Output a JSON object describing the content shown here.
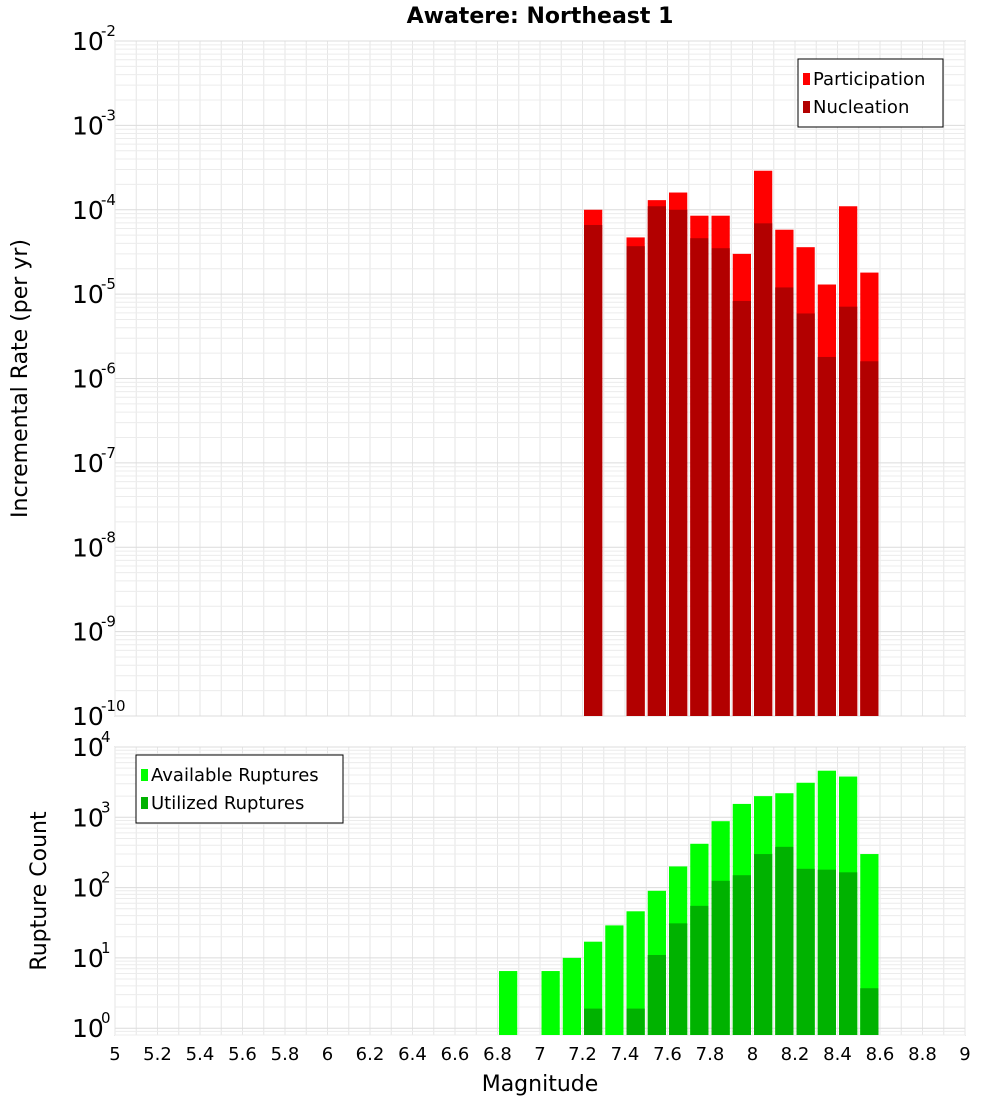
{
  "chart_data": [
    {
      "type": "bar",
      "title": "Awatere: Northeast 1",
      "xlabel": "Magnitude",
      "ylabel": "Incremental Rate (per yr)",
      "yscale": "log",
      "xlim": [
        5,
        9
      ],
      "ylim": [
        1e-10,
        0.01
      ],
      "grid": true,
      "legend_position": "top-right",
      "x": [
        7.25,
        7.45,
        7.55,
        7.65,
        7.75,
        7.85,
        7.95,
        8.05,
        8.15,
        8.25,
        8.35,
        8.45,
        8.55
      ],
      "series": [
        {
          "name": "Participation",
          "color": "#ff0000",
          "values": [
            0.0001,
            4.7e-05,
            0.00013,
            0.00016,
            8.5e-05,
            8.5e-05,
            3e-05,
            0.00029,
            5.8e-05,
            3.6e-05,
            1.3e-05,
            0.00011,
            1.8e-05
          ]
        },
        {
          "name": "Nucleation",
          "color": "#b20000",
          "values": [
            6.6e-05,
            3.7e-05,
            0.00011,
            0.0001,
            4.6e-05,
            3.5e-05,
            8.3e-06,
            6.9e-05,
            1.2e-05,
            5.9e-06,
            1.8e-06,
            7.1e-06,
            1.6e-06
          ]
        }
      ]
    },
    {
      "type": "bar",
      "xlabel": "Magnitude",
      "ylabel": "Rupture Count",
      "yscale": "log",
      "xlim": [
        5,
        9
      ],
      "ylim": [
        0.8,
        10000
      ],
      "grid": true,
      "legend_position": "top-left",
      "x_ticks": [
        "5",
        "5.2",
        "5.4",
        "5.6",
        "5.8",
        "6",
        "6.2",
        "6.4",
        "6.6",
        "6.8",
        "7",
        "7.2",
        "7.4",
        "7.6",
        "7.8",
        "8",
        "8.2",
        "8.4",
        "8.6",
        "8.8",
        "9"
      ],
      "x": [
        6.85,
        7.05,
        7.15,
        7.25,
        7.35,
        7.45,
        7.55,
        7.65,
        7.75,
        7.85,
        7.95,
        8.05,
        8.15,
        8.25,
        8.35,
        8.45,
        8.55
      ],
      "series": [
        {
          "name": "Available Ruptures",
          "color": "#00ff00",
          "values": [
            6.5,
            6.5,
            10,
            17,
            29,
            46,
            90,
            200,
            420,
            880,
            1550,
            2000,
            2200,
            3100,
            4600,
            3800,
            300
          ]
        },
        {
          "name": "Utilized Ruptures",
          "color": "#00b200",
          "values": [
            0,
            0,
            0,
            1.9,
            0,
            1.9,
            11,
            31,
            55,
            125,
            150,
            300,
            380,
            185,
            180,
            165,
            3.7
          ]
        }
      ]
    }
  ]
}
